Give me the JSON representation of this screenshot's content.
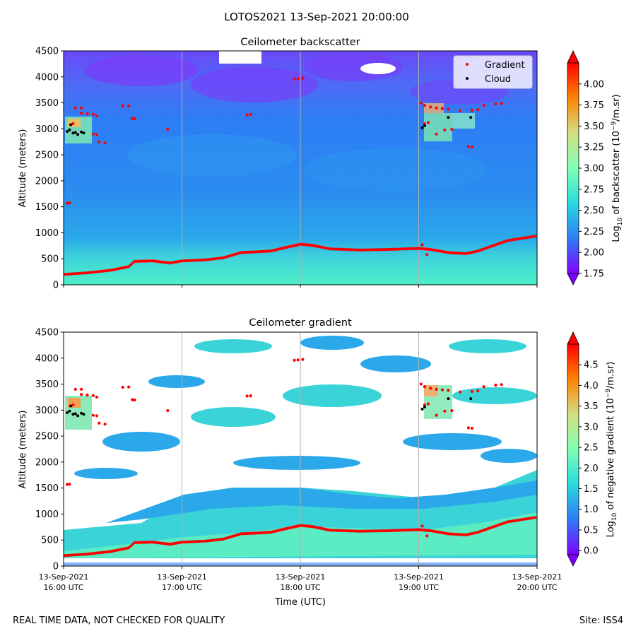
{
  "figure": {
    "suptitle": "LOTOS2021 13-Sep-2021 20:00:00",
    "footer_left": "REAL TIME DATA, NOT CHECKED FOR QUALITY",
    "footer_right": "Site: ISS4"
  },
  "colors": {
    "gradient_marker": "#ff0000",
    "cloud_marker": "#000000",
    "colormap": [
      "#8000ff",
      "#2c7ef7",
      "#2adddd",
      "#80ffb4",
      "#d4dd80",
      "#ff8000",
      "#ff0000"
    ],
    "missing": "#ffffff"
  },
  "legend": [
    {
      "label": "Gradient",
      "color": "#ff0000"
    },
    {
      "label": "Cloud",
      "color": "#000000"
    }
  ],
  "chart_data": [
    {
      "type": "heatmap",
      "title": "Ceilometer backscatter",
      "ylabel": "Altitude (meters)",
      "ylim": [
        0,
        4500
      ],
      "yticks": [
        "0",
        "500",
        "1000",
        "1500",
        "2000",
        "2500",
        "3000",
        "3500",
        "4000",
        "4500"
      ],
      "xlim_hours_utc": [
        16,
        20
      ],
      "colorbar": {
        "label_main": "Log",
        "label_sub": "10",
        "label_rest": " of backscatter (10",
        "label_sup": "−9",
        "label_end": "/m.sr)",
        "range": [
          1.75,
          4.25
        ],
        "ticks": [
          "1.75",
          "2.00",
          "2.25",
          "2.50",
          "2.75",
          "3.00",
          "3.25",
          "3.50",
          "3.75",
          "4.00"
        ],
        "extend": "both"
      },
      "approx_values": {
        "surface_layer": 2.9,
        "boundary_layer": 2.45,
        "free_troposphere": 2.3,
        "upper_layer": 2.0,
        "cloud_layer": 3.3
      }
    },
    {
      "type": "heatmap",
      "title": "Ceilometer gradient",
      "ylabel": "Altitude (meters)",
      "xlabel": "Time (UTC)",
      "ylim": [
        0,
        4500
      ],
      "yticks": [
        "0",
        "500",
        "1000",
        "1500",
        "2000",
        "2500",
        "3000",
        "3500",
        "4000",
        "4500"
      ],
      "xlim_hours_utc": [
        16,
        20
      ],
      "xticks": [
        {
          "line1": "13-Sep-2021",
          "line2": "16:00 UTC"
        },
        {
          "line1": "13-Sep-2021",
          "line2": "17:00 UTC"
        },
        {
          "line1": "13-Sep-2021",
          "line2": "18:00 UTC"
        },
        {
          "line1": "13-Sep-2021",
          "line2": "19:00 UTC"
        },
        {
          "line1": "13-Sep-2021",
          "line2": "20:00 UTC"
        }
      ],
      "colorbar": {
        "label_main": "Log",
        "label_sub": "10",
        "label_rest": " of negative gradient (10",
        "label_sup": "−9",
        "label_end": "/m.sr)",
        "range": [
          -0.1,
          5.0
        ],
        "ticks": [
          "0.0",
          "0.5",
          "1.0",
          "1.5",
          "2.0",
          "2.5",
          "3.0",
          "3.5",
          "4.0",
          "4.5"
        ],
        "extend": "both"
      },
      "approx_values": {
        "boundary_layer": 1.7,
        "patches": 1.5,
        "cloud_layer": 3.0
      }
    }
  ],
  "mixing_layer_height": {
    "series_name": "Gradient",
    "t_hours": [
      16.0,
      16.2,
      16.4,
      16.55,
      16.6,
      16.75,
      16.9,
      17.0,
      17.2,
      17.35,
      17.5,
      17.6,
      17.75,
      17.9,
      18.0,
      18.1,
      18.25,
      18.5,
      18.75,
      19.0,
      19.1,
      19.25,
      19.4,
      19.5,
      19.75,
      20.0
    ],
    "alt_m": [
      200,
      230,
      280,
      350,
      450,
      460,
      420,
      460,
      480,
      520,
      620,
      630,
      650,
      730,
      780,
      760,
      690,
      670,
      680,
      700,
      680,
      620,
      600,
      650,
      850,
      940
    ]
  },
  "gradient_points": [
    {
      "t": 16.03,
      "alt": 1570
    },
    {
      "t": 16.05,
      "alt": 1575
    },
    {
      "t": 16.08,
      "alt": 3100
    },
    {
      "t": 16.1,
      "alt": 3400
    },
    {
      "t": 16.15,
      "alt": 3400
    },
    {
      "t": 16.15,
      "alt": 3300
    },
    {
      "t": 16.2,
      "alt": 3290
    },
    {
      "t": 16.25,
      "alt": 3280
    },
    {
      "t": 16.28,
      "alt": 3250
    },
    {
      "t": 16.25,
      "alt": 2900
    },
    {
      "t": 16.28,
      "alt": 2890
    },
    {
      "t": 16.3,
      "alt": 2750
    },
    {
      "t": 16.35,
      "alt": 2730
    },
    {
      "t": 16.5,
      "alt": 3440
    },
    {
      "t": 16.55,
      "alt": 3445
    },
    {
      "t": 16.58,
      "alt": 3200
    },
    {
      "t": 16.6,
      "alt": 3195
    },
    {
      "t": 16.88,
      "alt": 2990
    },
    {
      "t": 17.55,
      "alt": 3270
    },
    {
      "t": 17.58,
      "alt": 3275
    },
    {
      "t": 17.95,
      "alt": 3960
    },
    {
      "t": 17.98,
      "alt": 3965
    },
    {
      "t": 18.02,
      "alt": 3975
    },
    {
      "t": 19.02,
      "alt": 3500
    },
    {
      "t": 19.05,
      "alt": 3450
    },
    {
      "t": 19.1,
      "alt": 3420
    },
    {
      "t": 19.15,
      "alt": 3400
    },
    {
      "t": 19.2,
      "alt": 3390
    },
    {
      "t": 19.25,
      "alt": 3380
    },
    {
      "t": 19.05,
      "alt": 3100
    },
    {
      "t": 19.08,
      "alt": 3120
    },
    {
      "t": 19.15,
      "alt": 2900
    },
    {
      "t": 19.22,
      "alt": 2980
    },
    {
      "t": 19.28,
      "alt": 2990
    },
    {
      "t": 19.35,
      "alt": 3350
    },
    {
      "t": 19.45,
      "alt": 3360
    },
    {
      "t": 19.5,
      "alt": 3370
    },
    {
      "t": 19.55,
      "alt": 3450
    },
    {
      "t": 19.65,
      "alt": 3480
    },
    {
      "t": 19.7,
      "alt": 3490
    },
    {
      "t": 19.42,
      "alt": 2660
    },
    {
      "t": 19.45,
      "alt": 2650
    },
    {
      "t": 19.03,
      "alt": 770
    },
    {
      "t": 19.07,
      "alt": 580
    }
  ],
  "cloud_points": [
    {
      "t": 16.03,
      "alt": 2950
    },
    {
      "t": 16.05,
      "alt": 2980
    },
    {
      "t": 16.06,
      "alt": 3080
    },
    {
      "t": 16.08,
      "alt": 2920
    },
    {
      "t": 16.1,
      "alt": 2930
    },
    {
      "t": 16.12,
      "alt": 2890
    },
    {
      "t": 16.15,
      "alt": 2940
    },
    {
      "t": 16.17,
      "alt": 2920
    },
    {
      "t": 19.03,
      "alt": 3020
    },
    {
      "t": 19.05,
      "alt": 3060
    },
    {
      "t": 19.25,
      "alt": 3220
    },
    {
      "t": 19.44,
      "alt": 3220
    }
  ]
}
